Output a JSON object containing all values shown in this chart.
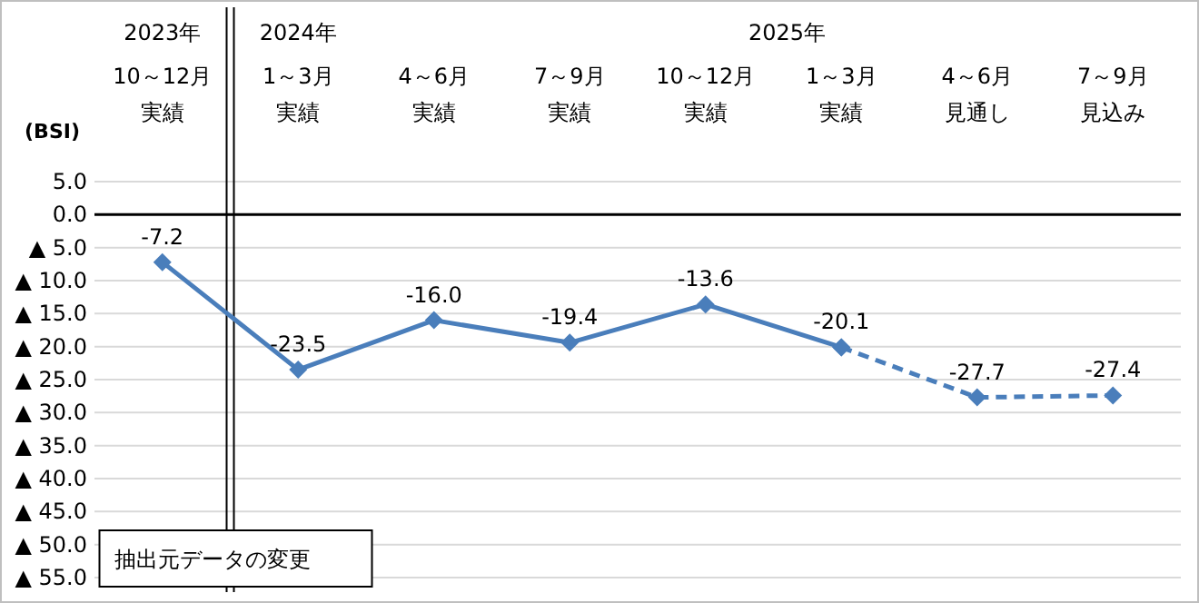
{
  "chart_data": {
    "type": "line",
    "ylabel": "(BSI)",
    "categories": [
      "10～12月実績",
      "1～3月実績",
      "4～6月実績",
      "7～9月実績",
      "10～12月実績",
      "1～3月実績",
      "4～6月見通し",
      "7～9月見込み"
    ],
    "series": [
      {
        "color": "#4a7ebb",
        "line_style": "solid",
        "values": [
          -7.2,
          -23.5,
          -16.0,
          -19.4,
          -13.6,
          -20.1,
          null,
          null
        ],
        "value_labels": [
          "-7.2",
          "-23.5",
          "-16.0",
          "-19.4",
          "-13.6",
          "-20.1",
          null,
          null
        ]
      },
      {
        "color": "#4a7ebb",
        "line_style": "dashed",
        "values": [
          null,
          null,
          null,
          null,
          null,
          -20.1,
          -27.7,
          -27.4
        ],
        "value_labels": [
          null,
          null,
          null,
          null,
          null,
          null,
          "-27.7",
          "-27.4"
        ]
      }
    ],
    "ylim": [
      -55,
      5
    ],
    "yticks": [
      {
        "value": 5,
        "label": "5.0"
      },
      {
        "value": 0,
        "label": "0.0"
      },
      {
        "value": -5,
        "label": "▲ 5.0"
      },
      {
        "value": -10,
        "label": "▲ 10.0"
      },
      {
        "value": -15,
        "label": "▲ 15.0"
      },
      {
        "value": -20,
        "label": "▲ 20.0"
      },
      {
        "value": -25,
        "label": "▲ 25.0"
      },
      {
        "value": -30,
        "label": "▲ 30.0"
      },
      {
        "value": -35,
        "label": "▲ 35.0"
      },
      {
        "value": -40,
        "label": "▲ 40.0"
      },
      {
        "value": -45,
        "label": "▲ 45.0"
      },
      {
        "value": -50,
        "label": "▲ 50.0"
      },
      {
        "value": -55,
        "label": "▲ 55.0"
      }
    ],
    "grid": "y",
    "marker": "diamond",
    "ref_lines": [
      {
        "axis": "y",
        "value": 0,
        "color": "#000000"
      }
    ],
    "annotations": [
      "2023年",
      "2024年",
      "2025年",
      "抽出元データの変更"
    ]
  }
}
